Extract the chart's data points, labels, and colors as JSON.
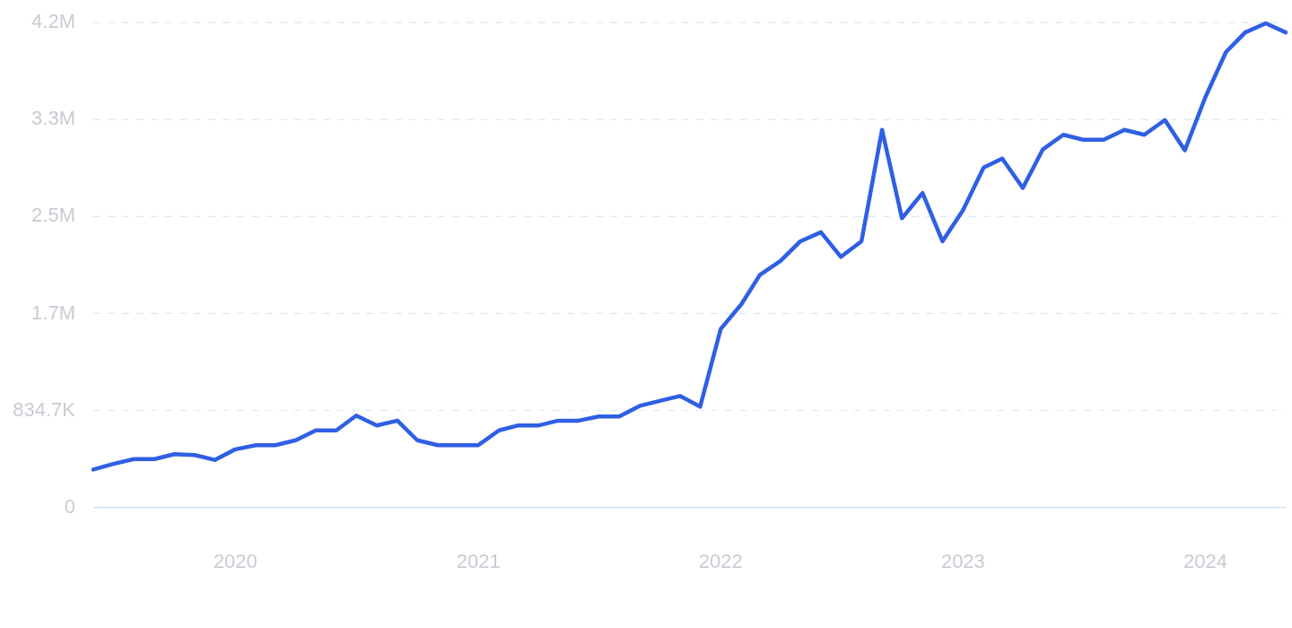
{
  "chart_data": {
    "type": "line",
    "x": [
      "2019-06",
      "2019-07",
      "2019-08",
      "2019-09",
      "2019-10",
      "2019-11",
      "2019-12",
      "2020-01",
      "2020-02",
      "2020-03",
      "2020-04",
      "2020-05",
      "2020-06",
      "2020-07",
      "2020-08",
      "2020-09",
      "2020-10",
      "2020-11",
      "2020-12",
      "2021-01",
      "2021-02",
      "2021-03",
      "2021-04",
      "2021-05",
      "2021-06",
      "2021-07",
      "2021-08",
      "2021-09",
      "2021-10",
      "2021-11",
      "2021-12",
      "2022-01",
      "2022-02",
      "2022-03",
      "2022-04",
      "2022-05",
      "2022-06",
      "2022-07",
      "2022-08",
      "2022-09",
      "2022-10",
      "2022-11",
      "2022-12",
      "2023-01",
      "2023-02",
      "2023-03",
      "2023-04",
      "2023-05",
      "2023-06",
      "2023-07",
      "2023-08",
      "2023-09",
      "2023-10",
      "2023-11",
      "2023-12",
      "2024-01",
      "2024-02",
      "2024-03",
      "2024-04",
      "2024-05"
    ],
    "series": [
      {
        "color": "#2f5fe3",
        "values": [
          326000,
          374000,
          416000,
          416000,
          458000,
          451000,
          409000,
          500000,
          536000,
          536000,
          578000,
          663000,
          663000,
          790000,
          705000,
          747000,
          578000,
          536000,
          536000,
          536000,
          663000,
          705000,
          705000,
          747000,
          747000,
          783000,
          783000,
          874000,
          917000,
          959000,
          867000,
          1537000,
          1748000,
          2002000,
          2122000,
          2291000,
          2369000,
          2157000,
          2291000,
          3250000,
          2489000,
          2707000,
          2291000,
          2559000,
          2926000,
          3003000,
          2750000,
          3081000,
          3208000,
          3165000,
          3165000,
          3250000,
          3208000,
          3335000,
          3074000,
          3532000,
          3920000,
          4089000,
          4167000,
          4089000
        ]
      }
    ],
    "xlim": [
      "2019-06",
      "2024-05"
    ],
    "xticks": [
      {
        "value": "2020-01",
        "label": "2020"
      },
      {
        "value": "2021-01",
        "label": "2021"
      },
      {
        "value": "2022-01",
        "label": "2022"
      },
      {
        "value": "2023-01",
        "label": "2023"
      },
      {
        "value": "2024-01",
        "label": "2024"
      }
    ],
    "ylim": [
      0,
      4173500
    ],
    "yticks": [
      {
        "value": 0,
        "label": "0"
      },
      {
        "value": 834700,
        "label": "834.7K"
      },
      {
        "value": 1669400,
        "label": "1.7M"
      },
      {
        "value": 2504100,
        "label": "2.5M"
      },
      {
        "value": 3338800,
        "label": "3.3M"
      },
      {
        "value": 4173500,
        "label": "4.2M"
      }
    ],
    "grid": "y",
    "legend": false,
    "marker": "none",
    "line_style": "solid"
  }
}
